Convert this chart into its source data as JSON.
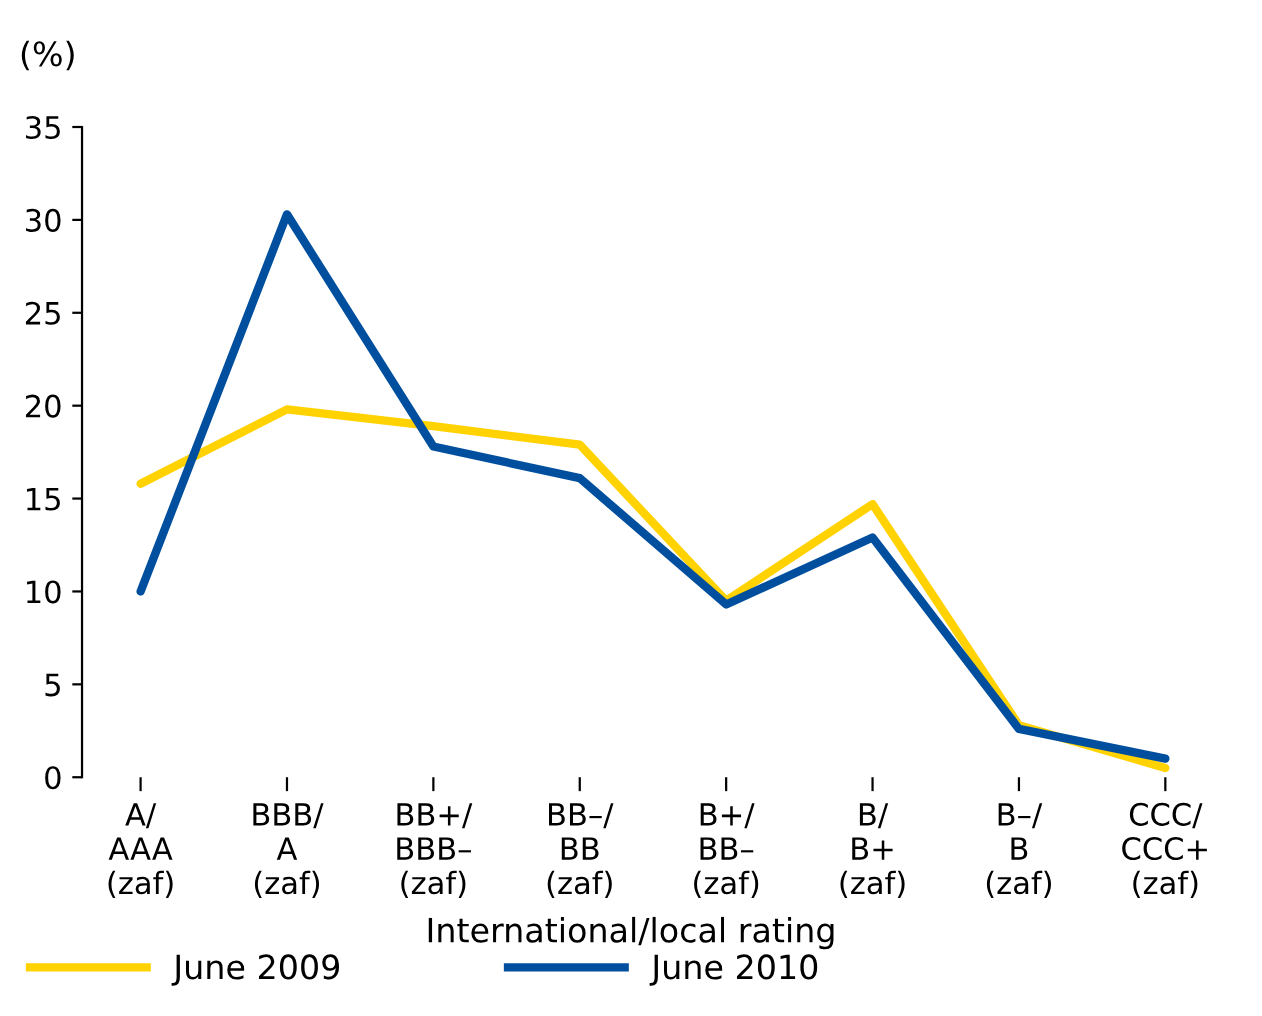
{
  "chart_data": {
    "type": "line",
    "ylabel": "(%)",
    "xlabel": "International/local rating",
    "categories": [
      "A/\nAAA\n(zaf)",
      "BBB/\nA\n(zaf)",
      "BB+/\nBBB–\n(zaf)",
      "BB–/\nBB\n(zaf)",
      "B+/\nBB–\n(zaf)",
      "B/\nB+\n(zaf)",
      "B–/\nB\n(zaf)",
      "CCC/\nCCC+\n(zaf)"
    ],
    "series": [
      {
        "name": "June 2009",
        "color": "#ffd200",
        "values": [
          15.8,
          19.8,
          18.9,
          17.9,
          9.5,
          14.7,
          2.8,
          0.5
        ]
      },
      {
        "name": "June 2010",
        "color": "#004f9f",
        "values": [
          10.0,
          30.3,
          17.8,
          16.1,
          9.3,
          12.9,
          2.6,
          1.0
        ]
      }
    ],
    "ylim": [
      0,
      35
    ],
    "yticks": [
      0,
      5,
      10,
      15,
      20,
      25,
      30,
      35
    ],
    "grid": false,
    "legend": "bottom",
    "marker": "none",
    "line_style": "solid"
  }
}
